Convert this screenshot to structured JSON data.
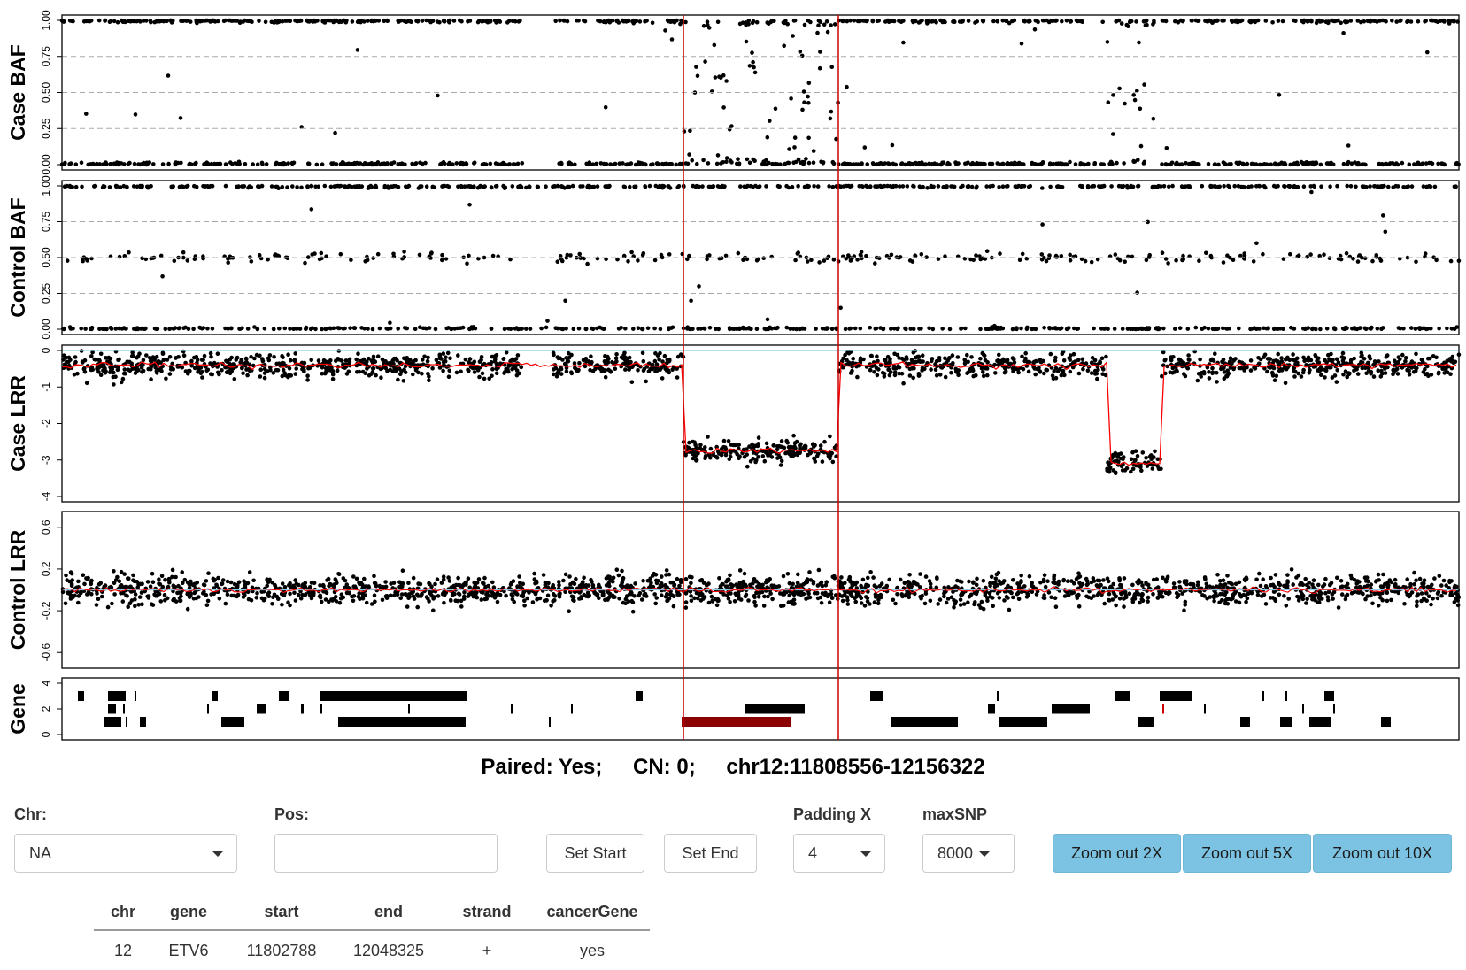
{
  "panels": [
    {
      "id": "case-baf",
      "label": "Case BAF",
      "ticks": [
        "0.00",
        "0.25",
        "0.50",
        "0.75",
        "1.00"
      ],
      "tick_values": [
        0,
        0.25,
        0.5,
        0.75,
        1.0
      ],
      "ylim": [
        0,
        1
      ]
    },
    {
      "id": "control-baf",
      "label": "Control BAF",
      "ticks": [
        "0.00",
        "0.25",
        "0.50",
        "0.75",
        "1.00"
      ],
      "tick_values": [
        0,
        0.25,
        0.5,
        0.75,
        1.0
      ],
      "ylim": [
        0,
        1
      ]
    },
    {
      "id": "case-lrr",
      "label": "Case LRR",
      "ticks": [
        "-4",
        "-3",
        "-2",
        "-1",
        "0"
      ],
      "tick_values": [
        -4,
        -3,
        -2,
        -1,
        0
      ],
      "ylim": [
        -4,
        0
      ]
    },
    {
      "id": "control-lrr",
      "label": "Control LRR",
      "ticks": [
        "-0.6",
        "-0.2",
        "0.2",
        "0.6"
      ],
      "tick_values": [
        -0.6,
        -0.2,
        0.2,
        0.6
      ],
      "ylim": [
        -0.7,
        0.7
      ]
    },
    {
      "id": "gene",
      "label": "Gene",
      "ticks": [
        "0",
        "2",
        "4"
      ],
      "tick_values": [
        0,
        2,
        4
      ],
      "ylim": [
        0,
        4
      ]
    }
  ],
  "summary": {
    "paired": "Paired: Yes;",
    "cn": "CN: 0;",
    "region": "chr12:11808556-12156322"
  },
  "controls": {
    "chr": {
      "label": "Chr:",
      "value": "NA"
    },
    "pos": {
      "label": "Pos:",
      "value": ""
    },
    "set_start": "Set Start",
    "set_end": "Set End",
    "padding": {
      "label": "Padding X",
      "value": "4"
    },
    "maxsnp": {
      "label": "maxSNP",
      "value": "8000"
    },
    "zoom_2x": "Zoom out 2X",
    "zoom_5x": "Zoom out 5X",
    "zoom_10x": "Zoom out 10X"
  },
  "gene_table": {
    "columns": [
      "chr",
      "gene",
      "start",
      "end",
      "strand",
      "cancerGene"
    ],
    "rows": [
      [
        "12",
        "ETV6",
        "11802788",
        "12048325",
        "+",
        "yes"
      ]
    ]
  },
  "colors": {
    "points": "#000000",
    "segment_line": "#ff0000",
    "baseline": "#87ceeb",
    "highlight_gene": "#8b0000",
    "zoom_button": "#7cc3e3"
  }
}
